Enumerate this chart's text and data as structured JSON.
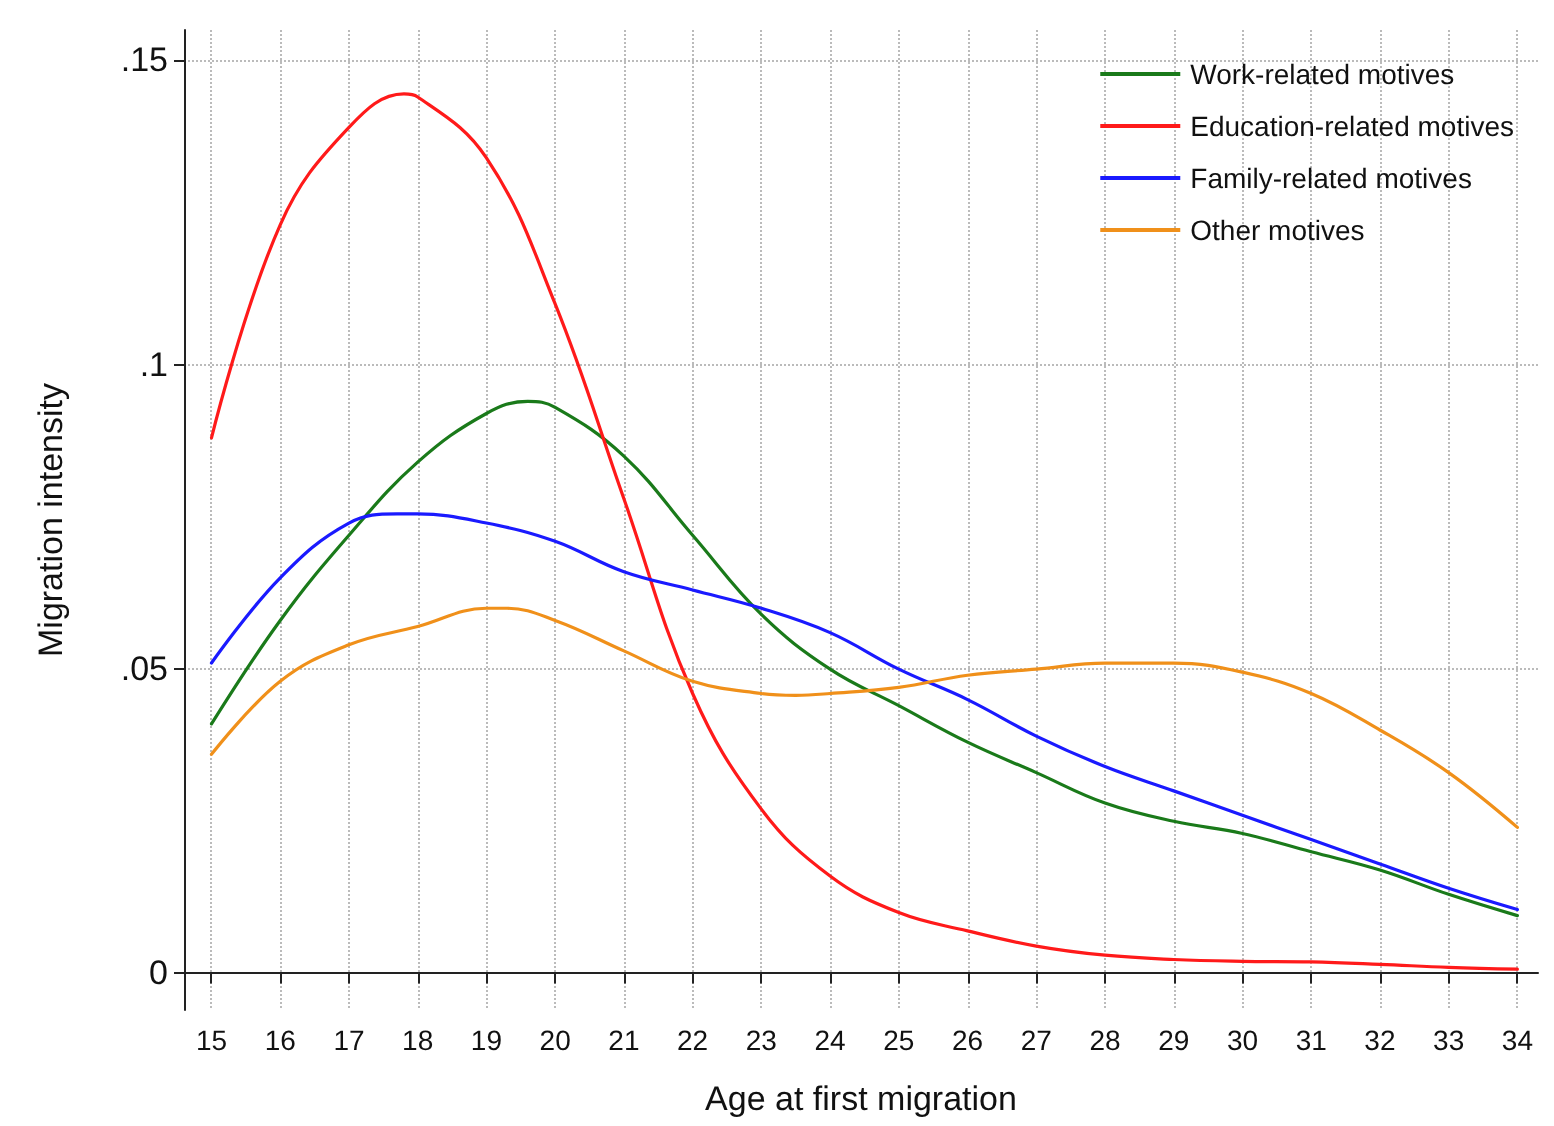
{
  "chart_data": {
    "type": "line",
    "xlabel": "Age at first migration",
    "ylabel": "Migration intensity",
    "xlim": [
      14.6,
      34.3
    ],
    "xticks": [
      15,
      16,
      17,
      18,
      19,
      20,
      21,
      22,
      23,
      24,
      25,
      26,
      27,
      28,
      29,
      30,
      31,
      32,
      33,
      34
    ],
    "ylim": [
      -0.006,
      0.155
    ],
    "yticks": [
      {
        "value": 0,
        "label": "0"
      },
      {
        "value": 0.05,
        "label": ".05"
      },
      {
        "value": 0.1,
        "label": ".1"
      },
      {
        "value": 0.15,
        "label": ".15"
      }
    ],
    "grid": true,
    "legend": "top right",
    "marker": "none",
    "line_style": "solid",
    "series": [
      {
        "name": "Work-related motives",
        "color": "#1a7a1a",
        "x": [
          15,
          16,
          17,
          18,
          19,
          19.6,
          20,
          21,
          22,
          23,
          24,
          25,
          26,
          27,
          28,
          29,
          30,
          31,
          32,
          33,
          34
        ],
        "values": [
          0.041,
          0.058,
          0.072,
          0.084,
          0.092,
          0.094,
          0.093,
          0.085,
          0.072,
          0.059,
          0.05,
          0.044,
          0.038,
          0.033,
          0.028,
          0.025,
          0.023,
          0.02,
          0.017,
          0.013,
          0.0095
        ]
      },
      {
        "name": "Education-related motives",
        "color": "#ff1a1a",
        "x": [
          15,
          16,
          17,
          17.8,
          18,
          19,
          20,
          21,
          22,
          23,
          24,
          25,
          26,
          27,
          28,
          29,
          30,
          31,
          32,
          33,
          34
        ],
        "values": [
          0.088,
          0.123,
          0.139,
          0.1445,
          0.144,
          0.134,
          0.11,
          0.078,
          0.046,
          0.027,
          0.016,
          0.01,
          0.007,
          0.0045,
          0.003,
          0.0023,
          0.002,
          0.0019,
          0.0015,
          0.001,
          0.0007
        ]
      },
      {
        "name": "Family-related motives",
        "color": "#1a1aff",
        "x": [
          15,
          16,
          17,
          17.7,
          18,
          19,
          20,
          21,
          22,
          23,
          24,
          25,
          26,
          27,
          28,
          29,
          30,
          31,
          32,
          33,
          34
        ],
        "values": [
          0.051,
          0.065,
          0.074,
          0.0755,
          0.0755,
          0.074,
          0.071,
          0.066,
          0.063,
          0.06,
          0.056,
          0.05,
          0.045,
          0.039,
          0.034,
          0.03,
          0.026,
          0.022,
          0.018,
          0.014,
          0.0105
        ]
      },
      {
        "name": "Other motives",
        "color": "#f0901a",
        "x": [
          15,
          16,
          17,
          18,
          19,
          19.3,
          20,
          21,
          22,
          23,
          23.5,
          24,
          25,
          26,
          27,
          28,
          29,
          30,
          31,
          32,
          33,
          34
        ],
        "values": [
          0.036,
          0.048,
          0.054,
          0.057,
          0.06,
          0.06,
          0.058,
          0.053,
          0.048,
          0.046,
          0.0457,
          0.046,
          0.047,
          0.049,
          0.05,
          0.051,
          0.051,
          0.0495,
          0.046,
          0.04,
          0.033,
          0.024
        ]
      }
    ]
  }
}
